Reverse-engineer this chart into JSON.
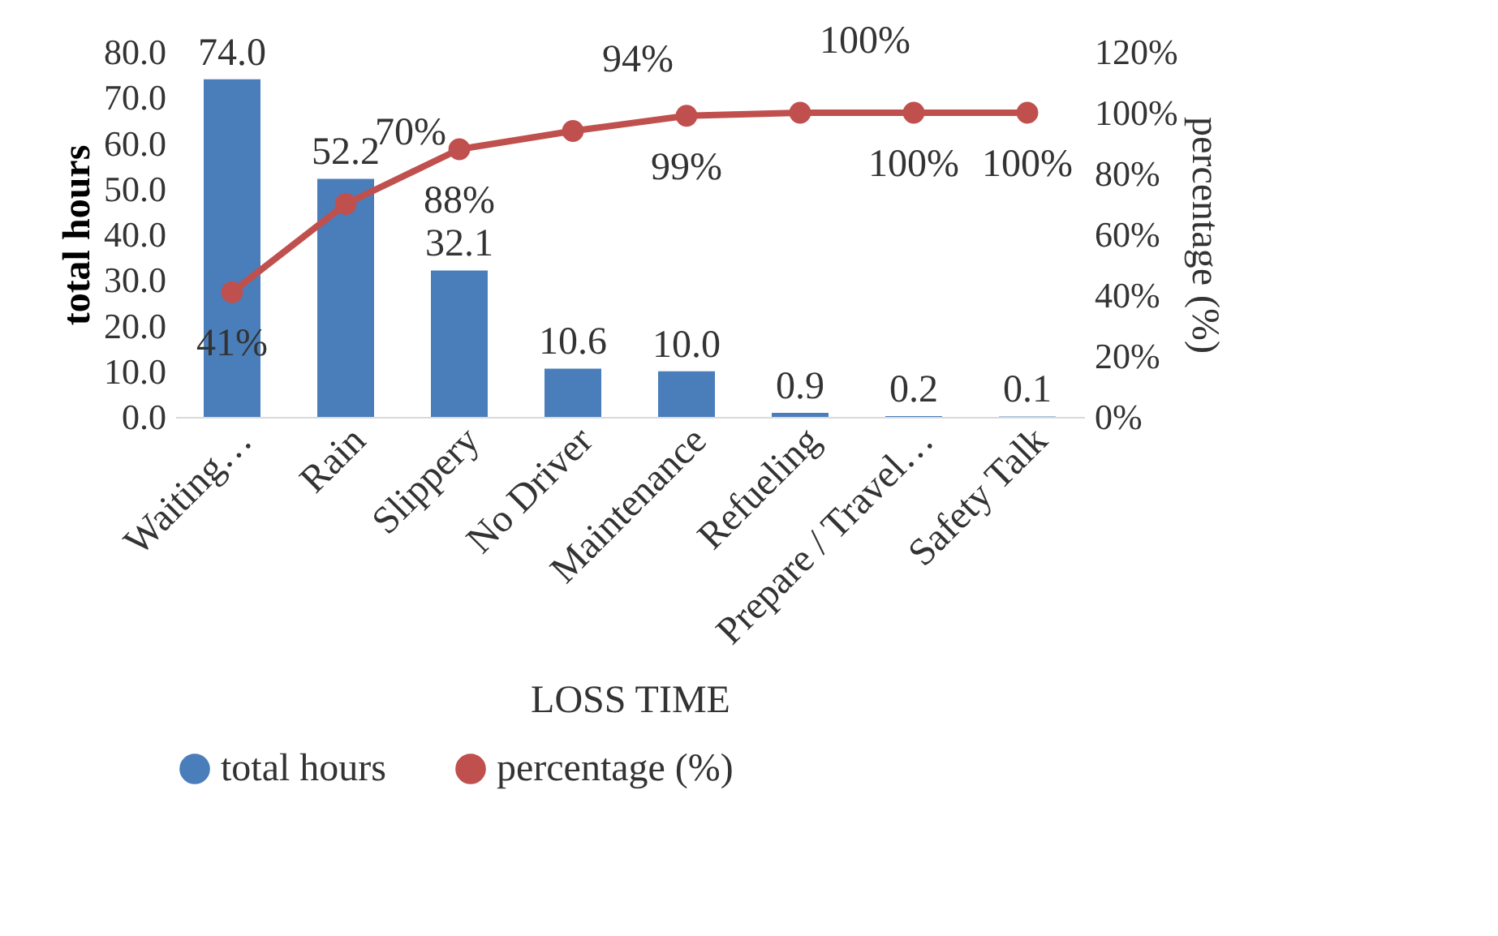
{
  "chart_data": {
    "type": "bar",
    "xlabel": "LOSS TIME",
    "ylabel": "total hours",
    "y2label": "percentage (%)",
    "categories": [
      "Waiting…",
      "Rain",
      "Slippery",
      "No Driver",
      "Maintenance",
      "Refueling",
      "Prepare / Travel…",
      "Safety Talk"
    ],
    "series": [
      {
        "name": "total hours",
        "color": "#4a7ebb",
        "values": [
          74.0,
          52.2,
          32.1,
          10.6,
          10.0,
          0.9,
          0.2,
          0.1
        ],
        "value_labels": [
          "74.0",
          "52.2",
          "32.1",
          "10.6",
          "10.0",
          "0.9",
          "0.2",
          "0.1"
        ]
      },
      {
        "name": "percentage (%)",
        "type": "line",
        "axis": "y2",
        "color": "#c0504d",
        "values": [
          41,
          70,
          88,
          94,
          99,
          100,
          100,
          100
        ],
        "value_labels": [
          "41%",
          "70%",
          "88%",
          "94%",
          "99%",
          "100%",
          "100%",
          "100%"
        ]
      }
    ],
    "ylim": [
      0,
      80
    ],
    "yticks": [
      {
        "value": 0,
        "label": "0.0"
      },
      {
        "value": 10,
        "label": "10.0"
      },
      {
        "value": 20,
        "label": "20.0"
      },
      {
        "value": 30,
        "label": "30.0"
      },
      {
        "value": 40,
        "label": "40.0"
      },
      {
        "value": 50,
        "label": "50.0"
      },
      {
        "value": 60,
        "label": "60.0"
      },
      {
        "value": 70,
        "label": "70.0"
      },
      {
        "value": 80,
        "label": "80.0"
      }
    ],
    "y2lim": [
      0,
      120
    ],
    "y2ticks": [
      {
        "value": 0,
        "label": "0%"
      },
      {
        "value": 20,
        "label": "20%"
      },
      {
        "value": 40,
        "label": "40%"
      },
      {
        "value": 60,
        "label": "60%"
      },
      {
        "value": 80,
        "label": "80%"
      },
      {
        "value": 100,
        "label": "100%"
      },
      {
        "value": 120,
        "label": "120%"
      }
    ],
    "grid": false,
    "legend": "bottom",
    "marker": "circle",
    "line_style": "solid"
  }
}
